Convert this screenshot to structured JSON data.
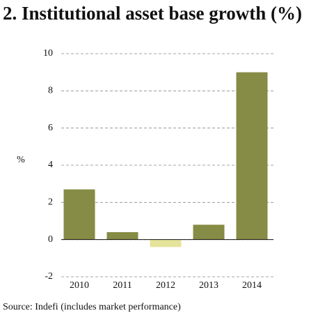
{
  "chart_data": {
    "type": "bar",
    "title": "2. Institutional asset base growth (%)",
    "y_label": "%",
    "source": "Source: Indefi (includes market performance)",
    "categories": [
      "2010",
      "2011",
      "2012",
      "2013",
      "2014"
    ],
    "values": [
      2.7,
      0.4,
      -0.4,
      0.8,
      9.0
    ],
    "colors": [
      "#868b45",
      "#868b45",
      "#e5e49b",
      "#868b45",
      "#868b45"
    ],
    "ylim": [
      -2,
      10
    ],
    "yticks": [
      -2,
      0,
      2,
      4,
      6,
      8,
      10
    ],
    "grid": true
  }
}
